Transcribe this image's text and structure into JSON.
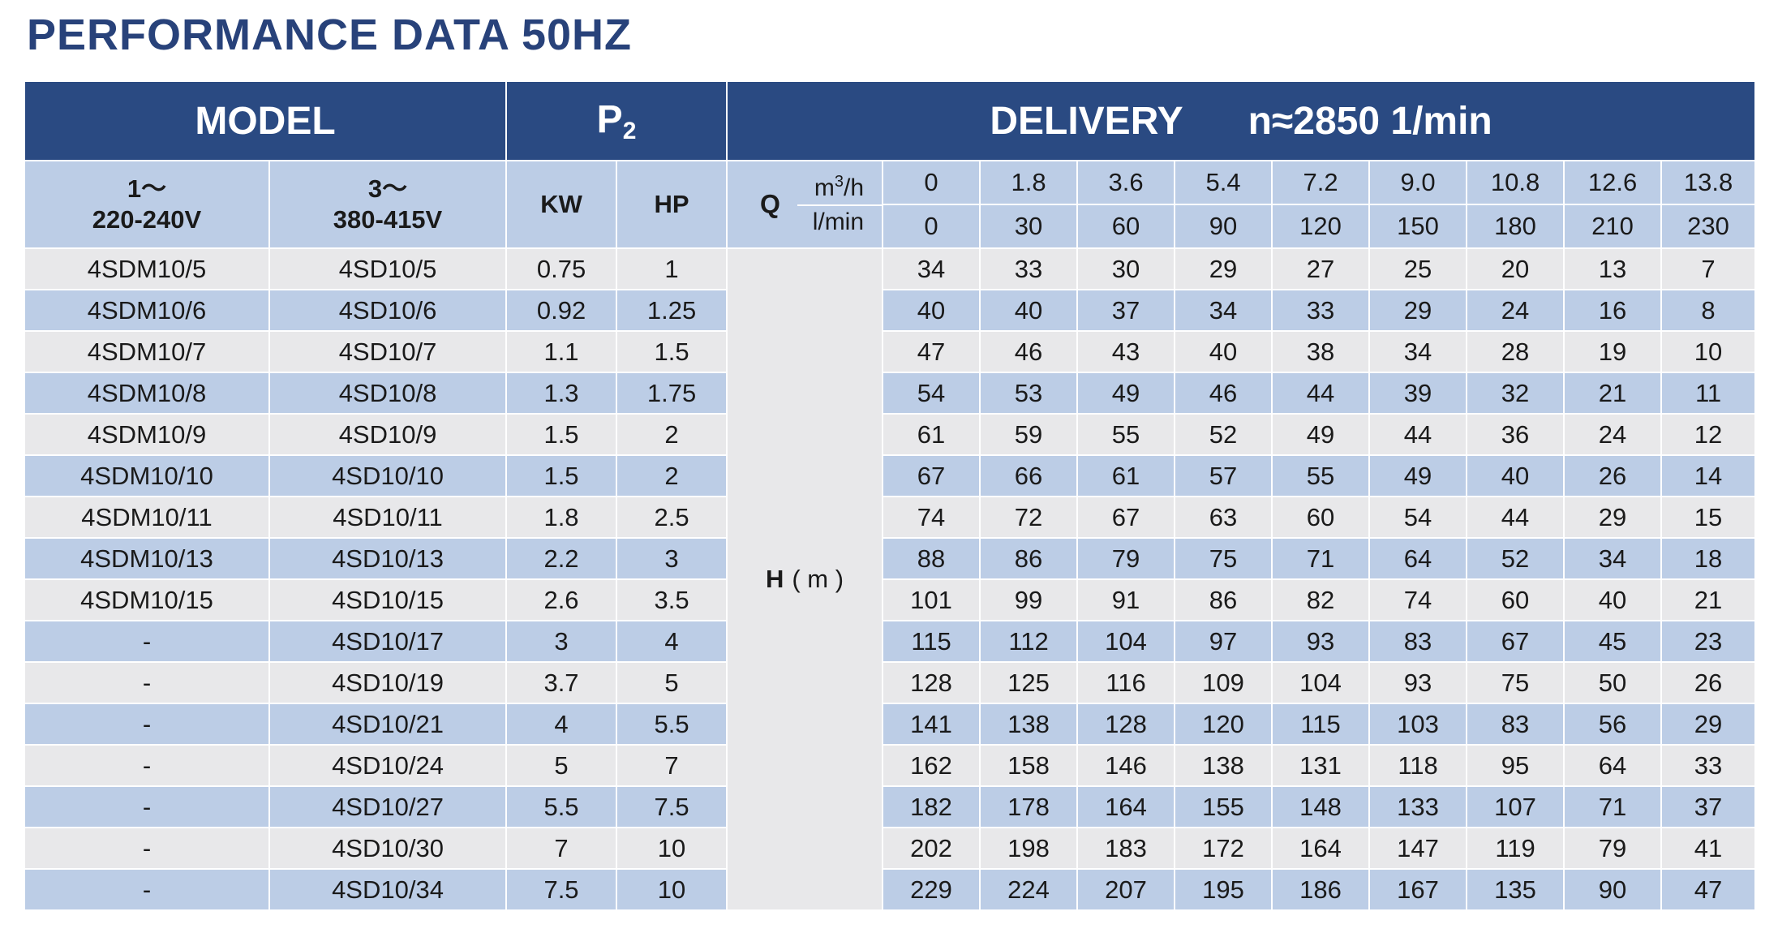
{
  "title": "PERFORMANCE DATA 50HZ",
  "header": {
    "model": "MODEL",
    "p2": "P",
    "p2_sub": "2",
    "delivery": "DELIVERY",
    "rpm": "n≈2850 1/min"
  },
  "subheader": {
    "single_phase_line1": "1～",
    "single_phase_line2": "220-240V",
    "three_phase_line1": "3～",
    "three_phase_line2": "380-415V",
    "kw": "KW",
    "hp": "HP",
    "q": "Q",
    "unit_m3h_base": "m",
    "unit_m3h_sup": "3",
    "unit_m3h_rest": "/h",
    "unit_lmin": "l/min"
  },
  "flow_m3h": [
    "0",
    "1.8",
    "3.6",
    "5.4",
    "7.2",
    "9.0",
    "10.8",
    "12.6",
    "13.8"
  ],
  "flow_lmin": [
    "0",
    "30",
    "60",
    "90",
    "120",
    "150",
    "180",
    "210",
    "230"
  ],
  "head_label": "H",
  "head_unit": "( m )",
  "rows": [
    {
      "m1": "4SDM10/5",
      "m3": "4SD10/5",
      "kw": "0.75",
      "hp": "1",
      "h": [
        "34",
        "33",
        "30",
        "29",
        "27",
        "25",
        "20",
        "13",
        "7"
      ]
    },
    {
      "m1": "4SDM10/6",
      "m3": "4SD10/6",
      "kw": "0.92",
      "hp": "1.25",
      "h": [
        "40",
        "40",
        "37",
        "34",
        "33",
        "29",
        "24",
        "16",
        "8"
      ]
    },
    {
      "m1": "4SDM10/7",
      "m3": "4SD10/7",
      "kw": "1.1",
      "hp": "1.5",
      "h": [
        "47",
        "46",
        "43",
        "40",
        "38",
        "34",
        "28",
        "19",
        "10"
      ]
    },
    {
      "m1": "4SDM10/8",
      "m3": "4SD10/8",
      "kw": "1.3",
      "hp": "1.75",
      "h": [
        "54",
        "53",
        "49",
        "46",
        "44",
        "39",
        "32",
        "21",
        "11"
      ]
    },
    {
      "m1": "4SDM10/9",
      "m3": "4SD10/9",
      "kw": "1.5",
      "hp": "2",
      "h": [
        "61",
        "59",
        "55",
        "52",
        "49",
        "44",
        "36",
        "24",
        "12"
      ]
    },
    {
      "m1": "4SDM10/10",
      "m3": "4SD10/10",
      "kw": "1.5",
      "hp": "2",
      "h": [
        "67",
        "66",
        "61",
        "57",
        "55",
        "49",
        "40",
        "26",
        "14"
      ]
    },
    {
      "m1": "4SDM10/11",
      "m3": "4SD10/11",
      "kw": "1.8",
      "hp": "2.5",
      "h": [
        "74",
        "72",
        "67",
        "63",
        "60",
        "54",
        "44",
        "29",
        "15"
      ]
    },
    {
      "m1": "4SDM10/13",
      "m3": "4SD10/13",
      "kw": "2.2",
      "hp": "3",
      "h": [
        "88",
        "86",
        "79",
        "75",
        "71",
        "64",
        "52",
        "34",
        "18"
      ]
    },
    {
      "m1": "4SDM10/15",
      "m3": "4SD10/15",
      "kw": "2.6",
      "hp": "3.5",
      "h": [
        "101",
        "99",
        "91",
        "86",
        "82",
        "74",
        "60",
        "40",
        "21"
      ]
    },
    {
      "m1": "-",
      "m3": "4SD10/17",
      "kw": "3",
      "hp": "4",
      "h": [
        "115",
        "112",
        "104",
        "97",
        "93",
        "83",
        "67",
        "45",
        "23"
      ]
    },
    {
      "m1": "-",
      "m3": "4SD10/19",
      "kw": "3.7",
      "hp": "5",
      "h": [
        "128",
        "125",
        "116",
        "109",
        "104",
        "93",
        "75",
        "50",
        "26"
      ]
    },
    {
      "m1": "-",
      "m3": "4SD10/21",
      "kw": "4",
      "hp": "5.5",
      "h": [
        "141",
        "138",
        "128",
        "120",
        "115",
        "103",
        "83",
        "56",
        "29"
      ]
    },
    {
      "m1": "-",
      "m3": "4SD10/24",
      "kw": "5",
      "hp": "7",
      "h": [
        "162",
        "158",
        "146",
        "138",
        "131",
        "118",
        "95",
        "64",
        "33"
      ]
    },
    {
      "m1": "-",
      "m3": "4SD10/27",
      "kw": "5.5",
      "hp": "7.5",
      "h": [
        "182",
        "178",
        "164",
        "155",
        "148",
        "133",
        "107",
        "71",
        "37"
      ]
    },
    {
      "m1": "-",
      "m3": "4SD10/30",
      "kw": "7",
      "hp": "10",
      "h": [
        "202",
        "198",
        "183",
        "172",
        "164",
        "147",
        "119",
        "79",
        "41"
      ]
    },
    {
      "m1": "-",
      "m3": "4SD10/34",
      "kw": "7.5",
      "hp": "10",
      "h": [
        "229",
        "224",
        "207",
        "195",
        "186",
        "167",
        "135",
        "90",
        "47"
      ]
    }
  ],
  "colors": {
    "header_bg": "#2a4a82",
    "title": "#28427a",
    "blue_row": "#bccde6",
    "light_row": "#e8e8ea"
  }
}
